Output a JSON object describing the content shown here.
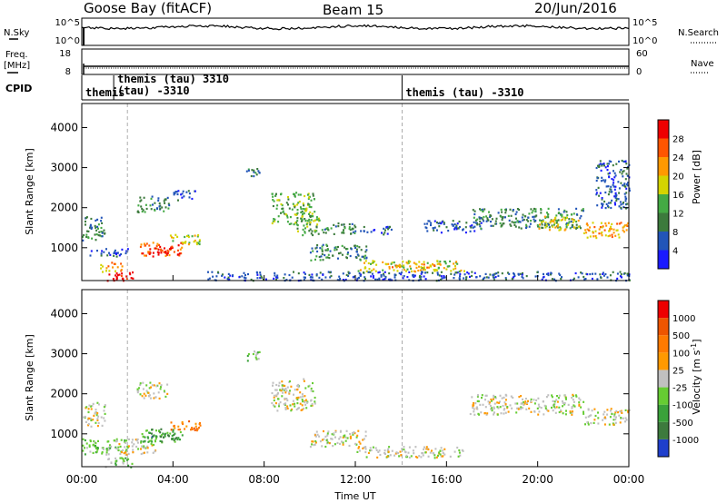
{
  "header": {
    "station": "Goose Bay (fitACF)",
    "beam": "Beam 15",
    "date": "20/Jun/2016"
  },
  "nsky_panel": {
    "left_label": "N.Sky",
    "right_label": "N.Search",
    "tick_top_left": "10^5",
    "tick_bottom_left": "10^0",
    "tick_top_right": "10^5",
    "tick_bottom_right": "10^0",
    "nsky_log_level": 3.2
  },
  "freq_panel": {
    "left_label_1": "Freq.",
    "left_label_2": "[MHz]",
    "right_label": "Nave",
    "left_tick_top": "18",
    "left_tick_bottom": "8",
    "right_tick_top": "60",
    "right_tick_bottom": "0",
    "freq_mhz": 10.5,
    "nave": 7
  },
  "cpid": {
    "label": "CPID",
    "segments": [
      {
        "start_hour": 0.0,
        "text": "themis"
      },
      {
        "start_hour": 1.4,
        "text": "themis (tau) 3310"
      },
      {
        "start_hour": 1.4,
        "text": "(tau) -3310"
      },
      {
        "start_hour": 14.05,
        "text": "themis (tau) -3310"
      }
    ],
    "dashed_hours": [
      2.0,
      14.05
    ]
  },
  "time_axis": {
    "label": "Time UT",
    "ticks": [
      "00:00",
      "04:00",
      "08:00",
      "12:00",
      "16:00",
      "20:00",
      "00:00"
    ],
    "range_hours": [
      0,
      24
    ]
  },
  "power_panel": {
    "ylabel": "Slant Range [km]",
    "yticks": [
      "1000",
      "2000",
      "3000",
      "4000"
    ],
    "yrange_km": [
      180,
      4600
    ],
    "colorbar_label": "Power [dB]",
    "colorbar_ticks": [
      "4",
      "8",
      "12",
      "16",
      "20",
      "24",
      "28"
    ],
    "colors": [
      "#1a1aff",
      "#2255b8",
      "#3c7a3c",
      "#44aa44",
      "#d4d400",
      "#ff9900",
      "#ff5500",
      "#ee0000"
    ]
  },
  "velocity_panel": {
    "ylabel": "Slant Range [km]",
    "yticks": [
      "1000",
      "2000",
      "3000",
      "4000"
    ],
    "yrange_km": [
      180,
      4600
    ],
    "colorbar_label": "Velocity [m s-1]",
    "colorbar_label_main": "Velocity [m s",
    "colorbar_label_exp": "-1",
    "colorbar_label_end": "]",
    "colorbar_ticks": [
      "1000",
      "500",
      "100",
      "25",
      "-25",
      "-100",
      "-500",
      "-1000"
    ],
    "colors": [
      "#1f3fcc",
      "#3d7a3d",
      "#3aa23a",
      "#66cc33",
      "#c0c0c0",
      "#ff9900",
      "#ff7a00",
      "#ee5500",
      "#ee0000"
    ]
  },
  "chart_data": {
    "type": "heatmap",
    "x_label": "Time UT",
    "y_label": "Slant Range [km]",
    "x_range_hours": [
      0,
      24
    ],
    "y_range_km": [
      180,
      4600
    ],
    "power_regions": [
      {
        "t0": 1.1,
        "t1": 2.3,
        "r0": 180,
        "r1": 420,
        "level": 7
      },
      {
        "t0": 0.8,
        "t1": 1.8,
        "r0": 420,
        "r1": 650,
        "level": 5
      },
      {
        "t0": 2.5,
        "t1": 4.4,
        "r0": 800,
        "r1": 1150,
        "level": 6
      },
      {
        "t0": 3.0,
        "t1": 4.0,
        "r0": 880,
        "r1": 1050,
        "level": 7
      },
      {
        "t0": 3.8,
        "t1": 5.2,
        "r0": 1100,
        "r1": 1350,
        "level": 4
      },
      {
        "t0": 0.0,
        "t1": 1.0,
        "r0": 1200,
        "r1": 1800,
        "level": 2
      },
      {
        "t0": 0.3,
        "t1": 2.0,
        "r0": 800,
        "r1": 1000,
        "level": 1
      },
      {
        "t0": 2.4,
        "t1": 3.8,
        "r0": 1900,
        "r1": 2300,
        "level": 2
      },
      {
        "t0": 4.0,
        "t1": 5.0,
        "r0": 2200,
        "r1": 2450,
        "level": 1
      },
      {
        "t0": 7.2,
        "t1": 7.8,
        "r0": 2800,
        "r1": 3100,
        "level": 2
      },
      {
        "t0": 8.3,
        "t1": 10.2,
        "r0": 1600,
        "r1": 2400,
        "level": 3
      },
      {
        "t0": 9.4,
        "t1": 10.4,
        "r0": 1300,
        "r1": 1800,
        "level": 3
      },
      {
        "t0": 10.0,
        "t1": 12.5,
        "r0": 700,
        "r1": 1100,
        "level": 2
      },
      {
        "t0": 10.4,
        "t1": 12.0,
        "r0": 1350,
        "r1": 1650,
        "level": 2
      },
      {
        "t0": 12.2,
        "t1": 13.6,
        "r0": 1350,
        "r1": 1550,
        "level": 1
      },
      {
        "t0": 12.0,
        "t1": 16.8,
        "r0": 420,
        "r1": 700,
        "level": 4
      },
      {
        "t0": 13.5,
        "t1": 15.5,
        "r0": 520,
        "r1": 620,
        "level": 5
      },
      {
        "t0": 15.0,
        "t1": 17.5,
        "r0": 1400,
        "r1": 1700,
        "level": 1
      },
      {
        "t0": 17.0,
        "t1": 22.0,
        "r0": 1500,
        "r1": 2000,
        "level": 2
      },
      {
        "t0": 20.0,
        "t1": 21.8,
        "r0": 1450,
        "r1": 1800,
        "level": 4
      },
      {
        "t0": 22.0,
        "t1": 24.0,
        "r0": 1250,
        "r1": 1650,
        "level": 5
      },
      {
        "t0": 22.5,
        "t1": 24.0,
        "r0": 2000,
        "r1": 3200,
        "level": 1
      },
      {
        "t0": 5.5,
        "t1": 24.0,
        "r0": 200,
        "r1": 420,
        "level": 1
      }
    ],
    "velocity_regions": [
      {
        "t0": 1.0,
        "t1": 2.3,
        "r0": 180,
        "r1": 420,
        "level": 3
      },
      {
        "t0": 0.0,
        "t1": 2.0,
        "r0": 500,
        "r1": 900,
        "level": 3
      },
      {
        "t0": 1.5,
        "t1": 3.2,
        "r0": 500,
        "r1": 900,
        "level": 4
      },
      {
        "t0": 2.5,
        "t1": 4.4,
        "r0": 800,
        "r1": 1150,
        "level": 2
      },
      {
        "t0": 3.0,
        "t1": 4.2,
        "r0": 900,
        "r1": 1050,
        "level": 1
      },
      {
        "t0": 3.8,
        "t1": 5.2,
        "r0": 1100,
        "r1": 1350,
        "level": 6
      },
      {
        "t0": 0.0,
        "t1": 1.0,
        "r0": 1200,
        "r1": 1800,
        "level": 4
      },
      {
        "t0": 2.4,
        "t1": 3.8,
        "r0": 1900,
        "r1": 2300,
        "level": 4
      },
      {
        "t0": 7.2,
        "t1": 7.8,
        "r0": 2800,
        "r1": 3100,
        "level": 3
      },
      {
        "t0": 8.3,
        "t1": 10.2,
        "r0": 1600,
        "r1": 2400,
        "level": 4
      },
      {
        "t0": 10.0,
        "t1": 12.5,
        "r0": 700,
        "r1": 1100,
        "level": 4
      },
      {
        "t0": 12.0,
        "t1": 16.8,
        "r0": 420,
        "r1": 700,
        "level": 4
      },
      {
        "t0": 17.0,
        "t1": 22.0,
        "r0": 1500,
        "r1": 2000,
        "level": 4
      },
      {
        "t0": 22.0,
        "t1": 24.0,
        "r0": 1250,
        "r1": 1650,
        "level": 4
      }
    ]
  }
}
